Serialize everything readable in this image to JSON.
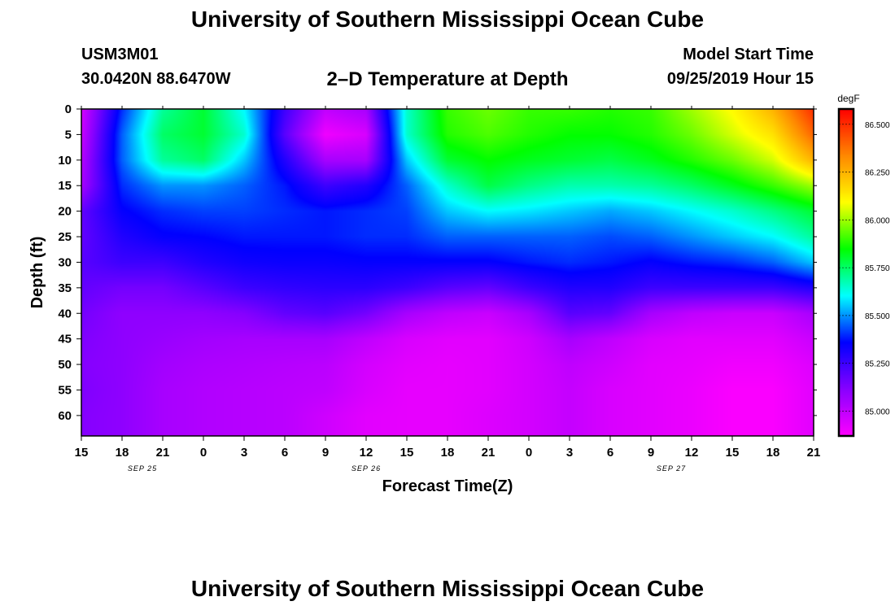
{
  "header": {
    "title": "University of Southern Mississippi Ocean Cube",
    "station_id": "USM3M01",
    "station_location": "30.0420N 88.6470W",
    "plot_title": "2–D Temperature at Depth",
    "start_label": "Model Start Time",
    "start_value": "09/25/2019 Hour 15"
  },
  "footer": {
    "title": "University of Southern Mississippi Ocean Cube"
  },
  "chart_data": {
    "type": "heatmap",
    "title": "2–D Temperature at Depth",
    "xlabel": "Forecast Time(Z)",
    "ylabel": "Depth (ft)",
    "x_ticks": [
      "15",
      "18",
      "21",
      "0",
      "3",
      "6",
      "9",
      "12",
      "15",
      "18",
      "21",
      "0",
      "3",
      "6",
      "9",
      "12",
      "15",
      "18",
      "21"
    ],
    "date_labels": [
      {
        "text": "SEP 25",
        "tick_index": 1.5
      },
      {
        "text": "SEP 26",
        "tick_index": 7
      },
      {
        "text": "SEP 27",
        "tick_index": 14.5
      }
    ],
    "y_ticks": [
      0,
      5,
      10,
      15,
      20,
      25,
      30,
      35,
      40,
      45,
      50,
      55,
      60
    ],
    "ylim": [
      0,
      64
    ],
    "colorbar": {
      "unit": "degF",
      "ticks": [
        "86.500",
        "86.250",
        "86.000",
        "85.750",
        "85.500",
        "85.250",
        "85.000"
      ],
      "tick_values": [
        86.5,
        86.25,
        86.0,
        85.75,
        85.5,
        85.25,
        85.0
      ],
      "range": [
        84.87,
        86.58
      ],
      "colors": [
        "#ff00ff",
        "#8800ff",
        "#0000ff",
        "#00ffff",
        "#00ff00",
        "#ffff00",
        "#ff8800",
        "#ff0000"
      ]
    },
    "field": {
      "time_hours": [
        0,
        3,
        6,
        9,
        12,
        15,
        18,
        21,
        24,
        27,
        30,
        33,
        36,
        39,
        42,
        45,
        48,
        51,
        54
      ],
      "depth_ft": [
        0,
        5,
        10,
        15,
        20,
        25,
        30,
        35,
        40,
        45,
        50,
        55,
        60,
        64
      ],
      "temp_degF": [
        [
          84.95,
          84.98,
          85.02,
          85.05,
          85.18,
          85.18,
          85.2,
          85.18,
          85.15,
          85.13,
          85.12,
          85.13,
          85.12,
          85.12
        ],
        [
          85.4,
          85.45,
          85.45,
          85.4,
          85.35,
          85.3,
          85.25,
          85.15,
          85.1,
          85.1,
          85.1,
          85.1,
          85.1,
          85.1
        ],
        [
          85.7,
          85.75,
          85.7,
          85.5,
          85.4,
          85.35,
          85.25,
          85.15,
          85.1,
          85.08,
          85.06,
          85.05,
          85.05,
          85.05
        ],
        [
          85.8,
          85.8,
          85.75,
          85.5,
          85.42,
          85.36,
          85.3,
          85.2,
          85.1,
          85.06,
          85.04,
          85.03,
          85.03,
          85.03
        ],
        [
          85.6,
          85.65,
          85.55,
          85.45,
          85.42,
          85.38,
          85.33,
          85.25,
          85.12,
          85.05,
          85.03,
          85.02,
          85.02,
          85.02
        ],
        [
          85.25,
          85.2,
          85.3,
          85.38,
          85.4,
          85.38,
          85.34,
          85.27,
          85.18,
          85.05,
          85.02,
          85.01,
          85.01,
          85.01
        ],
        [
          85.0,
          84.9,
          85.05,
          85.25,
          85.38,
          85.38,
          85.34,
          85.28,
          85.2,
          85.05,
          85.01,
          85.0,
          84.97,
          84.97
        ],
        [
          85.05,
          84.95,
          85.05,
          85.3,
          85.4,
          85.4,
          85.35,
          85.28,
          85.15,
          85.0,
          84.96,
          84.95,
          84.93,
          84.93
        ],
        [
          85.65,
          85.65,
          85.55,
          85.45,
          85.42,
          85.4,
          85.35,
          85.25,
          85.05,
          84.95,
          84.93,
          84.92,
          84.92,
          84.92
        ],
        [
          85.9,
          85.88,
          85.8,
          85.65,
          85.55,
          85.45,
          85.35,
          85.2,
          85.0,
          84.93,
          84.92,
          84.92,
          84.92,
          84.92
        ],
        [
          85.95,
          85.92,
          85.85,
          85.78,
          85.6,
          85.45,
          85.35,
          85.18,
          84.98,
          84.93,
          84.93,
          84.93,
          84.94,
          84.94
        ],
        [
          85.9,
          85.88,
          85.82,
          85.72,
          85.58,
          85.45,
          85.38,
          85.25,
          85.05,
          84.97,
          84.96,
          84.96,
          84.96,
          84.96
        ],
        [
          85.9,
          85.85,
          85.8,
          85.68,
          85.55,
          85.45,
          85.4,
          85.3,
          85.2,
          85.05,
          85.0,
          84.99,
          84.99,
          84.99
        ],
        [
          85.88,
          85.85,
          85.78,
          85.68,
          85.52,
          85.43,
          85.38,
          85.3,
          85.18,
          85.0,
          84.97,
          84.95,
          84.95,
          84.95
        ],
        [
          85.9,
          85.88,
          85.82,
          85.7,
          85.55,
          85.45,
          85.35,
          85.25,
          85.05,
          84.95,
          84.93,
          84.93,
          84.93,
          84.93
        ],
        [
          86.0,
          85.95,
          85.88,
          85.75,
          85.6,
          85.5,
          85.38,
          85.25,
          85.0,
          84.93,
          84.92,
          84.91,
          84.91,
          84.91
        ],
        [
          86.1,
          86.05,
          85.95,
          85.82,
          85.65,
          85.55,
          85.4,
          85.25,
          84.98,
          84.93,
          84.9,
          84.88,
          84.88,
          84.88
        ],
        [
          86.25,
          86.15,
          86.05,
          85.9,
          85.72,
          85.6,
          85.45,
          85.25,
          84.98,
          84.93,
          84.9,
          84.88,
          84.88,
          84.88
        ],
        [
          86.5,
          86.4,
          86.25,
          86.0,
          85.8,
          85.7,
          85.55,
          85.3,
          85.05,
          84.98,
          84.94,
          84.93,
          84.93,
          84.93
        ]
      ]
    }
  }
}
